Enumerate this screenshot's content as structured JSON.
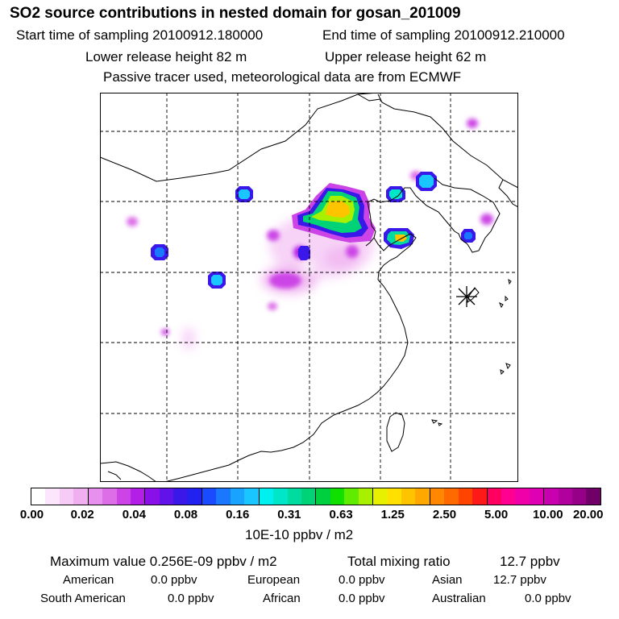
{
  "title": "SO2 source contributions in nested domain for gosan_201009",
  "start_label": "Start time of sampling 20100912.180000",
  "end_label": "End time of sampling 20100912.210000",
  "lower_label": "Lower release height   82 m",
  "upper_label": "Upper release height   62 m",
  "tracer_label": "Passive tracer used, meteorological data are from ECMWF",
  "colorbar": {
    "ticks": [
      "0.00",
      "0.02",
      "0.04",
      "0.08",
      "0.16",
      "0.31",
      "0.63",
      "1.25",
      "2.50",
      "5.00",
      "10.00",
      "20.00"
    ],
    "units": "10E-10 ppbv / m2",
    "colors": [
      "#ffffff",
      "#fbe6fb",
      "#f6ccf6",
      "#f0b0f0",
      "#e890ee",
      "#dd6ee8",
      "#cc44e6",
      "#b31fe6",
      "#8a10e8",
      "#6012e8",
      "#3a18ea",
      "#2222f0",
      "#1a4cff",
      "#1a78ff",
      "#1aa2ff",
      "#1ac6ff",
      "#00f0f0",
      "#00e6c8",
      "#00dca0",
      "#00d278",
      "#00d040",
      "#10e000",
      "#60ec00",
      "#a8f000",
      "#e6f000",
      "#ffe000",
      "#ffc400",
      "#ffa800",
      "#ff8800",
      "#ff6a00",
      "#ff4400",
      "#ff1a1a",
      "#ff0060",
      "#ff0090",
      "#f000a8",
      "#e000b4",
      "#c800b0",
      "#b0009e",
      "#960088",
      "#700068"
    ]
  },
  "stats": {
    "max_label": "Maximum value  0.256E-09 ppbv / m2",
    "total_label": "Total mixing ratio",
    "total_value": "12.7 ppbv"
  },
  "regions": {
    "american": {
      "label": "American",
      "value": "0.0 ppbv"
    },
    "european": {
      "label": "European",
      "value": "0.0 ppbv"
    },
    "asian": {
      "label": "Asian",
      "value": "12.7 ppbv"
    },
    "south_american": {
      "label": "South American",
      "value": "0.0 ppbv"
    },
    "african": {
      "label": "African",
      "value": "0.0 ppbv"
    },
    "australian": {
      "label": "Australian",
      "value": "0.0 ppbv"
    }
  }
}
